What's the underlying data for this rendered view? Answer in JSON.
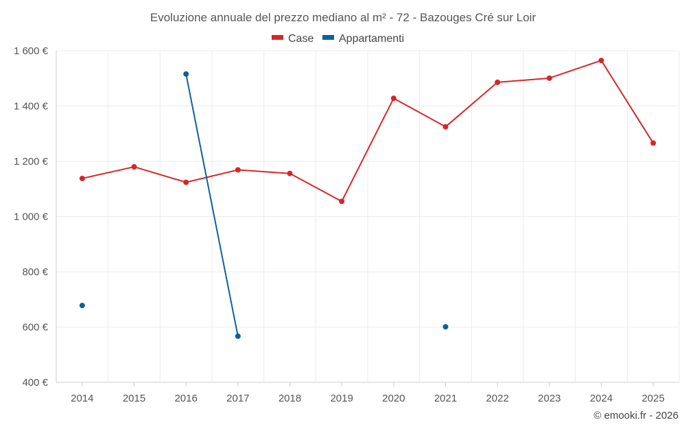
{
  "chart_data": {
    "type": "line",
    "title": "Evoluzione annuale del prezzo mediano al m² - 72 - Bazouges Cré sur Loir",
    "xlabel": "",
    "ylabel": "",
    "categories": [
      "2014",
      "2015",
      "2016",
      "2017",
      "2018",
      "2019",
      "2020",
      "2021",
      "2022",
      "2023",
      "2024",
      "2025"
    ],
    "ylim": [
      400,
      1600
    ],
    "yticks": [
      400,
      600,
      800,
      1000,
      1200,
      1400,
      1600
    ],
    "ytick_labels": [
      "400 €",
      "600 €",
      "800 €",
      "1 000 €",
      "1 200 €",
      "1 400 €",
      "1 600 €"
    ],
    "grid": true,
    "legend": "top-center",
    "series": [
      {
        "name": "Case",
        "color": "#d62728",
        "values": [
          1138,
          1180,
          1124,
          1169,
          1156,
          1055,
          1428,
          1325,
          1486,
          1501,
          1565,
          1266
        ]
      },
      {
        "name": "Appartamenti",
        "color": "#0e6198",
        "values": [
          678,
          null,
          1516,
          567,
          null,
          null,
          null,
          601,
          null,
          null,
          null,
          null
        ]
      }
    ]
  },
  "credit": "© emooki.fr - 2026"
}
